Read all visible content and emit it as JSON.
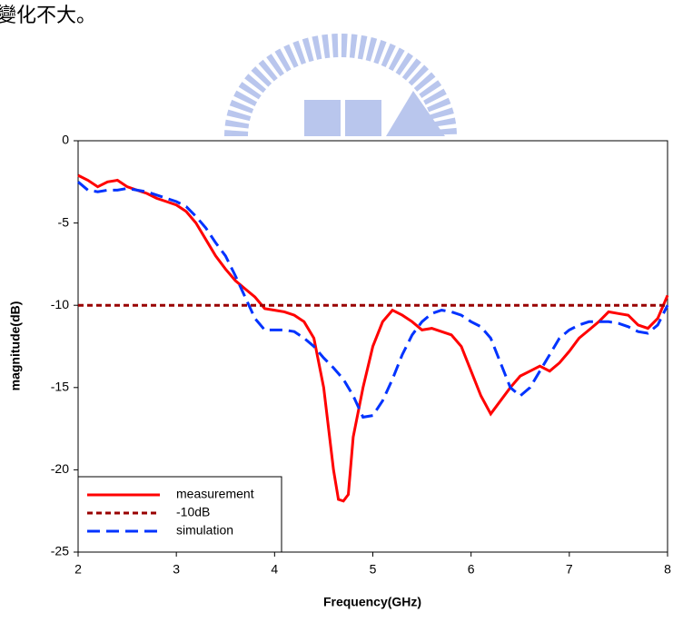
{
  "text": "變化不大。",
  "chart_data": {
    "type": "line",
    "xlabel": "Frequency(GHz)",
    "ylabel": "magnitude(dB)",
    "xlim": [
      2,
      8
    ],
    "ylim": [
      -25,
      0
    ],
    "xticks": [
      2,
      3,
      4,
      5,
      6,
      7,
      8
    ],
    "yticks": [
      0,
      -5,
      -10,
      -15,
      -20,
      -25
    ],
    "legend": "lower left",
    "series": [
      {
        "name": "measurement",
        "color": "#ff0000",
        "style": "solid",
        "x": [
          2.0,
          2.1,
          2.2,
          2.3,
          2.4,
          2.5,
          2.6,
          2.7,
          2.8,
          2.9,
          3.0,
          3.1,
          3.2,
          3.3,
          3.4,
          3.5,
          3.6,
          3.7,
          3.8,
          3.9,
          4.0,
          4.1,
          4.2,
          4.3,
          4.4,
          4.5,
          4.6,
          4.65,
          4.7,
          4.75,
          4.8,
          4.9,
          5.0,
          5.1,
          5.2,
          5.3,
          5.4,
          5.5,
          5.6,
          5.7,
          5.8,
          5.9,
          6.0,
          6.1,
          6.2,
          6.3,
          6.4,
          6.5,
          6.6,
          6.7,
          6.8,
          6.9,
          7.0,
          7.1,
          7.2,
          7.3,
          7.4,
          7.5,
          7.6,
          7.7,
          7.8,
          7.9,
          8.0
        ],
        "values": [
          -2.1,
          -2.4,
          -2.8,
          -2.5,
          -2.4,
          -2.8,
          -3.0,
          -3.2,
          -3.5,
          -3.7,
          -3.9,
          -4.3,
          -5.0,
          -6.0,
          -7.0,
          -7.8,
          -8.5,
          -9.0,
          -9.5,
          -10.2,
          -10.3,
          -10.4,
          -10.6,
          -11.0,
          -12.0,
          -15.0,
          -20.0,
          -21.8,
          -21.9,
          -21.5,
          -18.0,
          -15.0,
          -12.5,
          -11.0,
          -10.3,
          -10.6,
          -11.0,
          -11.5,
          -11.4,
          -11.6,
          -11.8,
          -12.5,
          -14.0,
          -15.5,
          -16.6,
          -15.8,
          -15.0,
          -14.3,
          -14.0,
          -13.7,
          -14.0,
          -13.5,
          -12.8,
          -12.0,
          -11.5,
          -11.0,
          -10.4,
          -10.5,
          -10.6,
          -11.2,
          -11.4,
          -10.8,
          -9.4
        ]
      },
      {
        "name": "-10dB",
        "color": "#990000",
        "style": "dashed",
        "x": [
          2,
          8
        ],
        "values": [
          -10,
          -10
        ]
      },
      {
        "name": "simulation",
        "color": "#0033ff",
        "style": "longdash",
        "x": [
          2.0,
          2.1,
          2.2,
          2.3,
          2.4,
          2.5,
          2.6,
          2.7,
          2.8,
          2.9,
          3.0,
          3.1,
          3.2,
          3.3,
          3.4,
          3.5,
          3.6,
          3.7,
          3.8,
          3.9,
          4.0,
          4.1,
          4.2,
          4.3,
          4.4,
          4.5,
          4.6,
          4.7,
          4.8,
          4.9,
          5.0,
          5.1,
          5.2,
          5.3,
          5.4,
          5.5,
          5.6,
          5.7,
          5.8,
          5.9,
          6.0,
          6.1,
          6.2,
          6.3,
          6.4,
          6.5,
          6.6,
          6.7,
          6.8,
          6.9,
          7.0,
          7.1,
          7.2,
          7.3,
          7.4,
          7.5,
          7.6,
          7.7,
          7.8,
          7.9,
          8.0
        ],
        "values": [
          -2.5,
          -3.0,
          -3.1,
          -3.0,
          -3.0,
          -2.9,
          -3.0,
          -3.1,
          -3.3,
          -3.5,
          -3.7,
          -4.0,
          -4.6,
          -5.3,
          -6.2,
          -7.0,
          -8.2,
          -9.5,
          -10.8,
          -11.5,
          -11.5,
          -11.5,
          -11.6,
          -12.0,
          -12.5,
          -13.2,
          -13.8,
          -14.5,
          -15.5,
          -16.8,
          -16.7,
          -15.8,
          -14.5,
          -13.0,
          -11.8,
          -11.0,
          -10.5,
          -10.3,
          -10.4,
          -10.6,
          -11.0,
          -11.3,
          -12.0,
          -13.5,
          -15.0,
          -15.5,
          -15.0,
          -14.0,
          -13.0,
          -12.0,
          -11.5,
          -11.2,
          -11.0,
          -11.0,
          -11.0,
          -11.1,
          -11.3,
          -11.6,
          -11.7,
          -11.2,
          -10.0
        ]
      }
    ]
  }
}
